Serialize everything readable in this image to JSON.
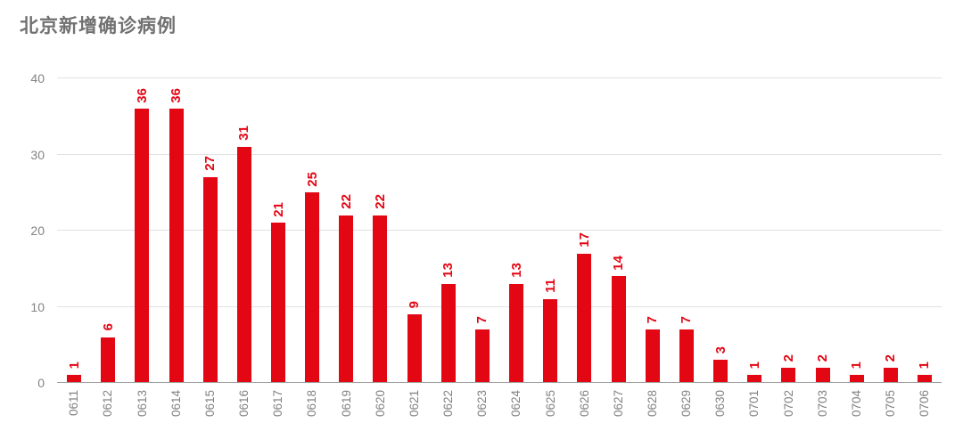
{
  "title": "北京新增确诊病例",
  "colors": {
    "bar": "#e30613",
    "value_label": "#e30613",
    "title": "#717171",
    "axis_label": "#828282",
    "gridline": "#e2e2e2",
    "baseline": "#9b9b9b",
    "background": "#ffffff"
  },
  "chart_data": {
    "type": "bar",
    "title": "北京新增确诊病例",
    "categories": [
      "0611",
      "0612",
      "0613",
      "0614",
      "0615",
      "0616",
      "0617",
      "0618",
      "0619",
      "0620",
      "0621",
      "0622",
      "0623",
      "0624",
      "0625",
      "0626",
      "0627",
      "0628",
      "0629",
      "0630",
      "0701",
      "0702",
      "0703",
      "0704",
      "0705",
      "0706"
    ],
    "values": [
      1,
      6,
      36,
      36,
      27,
      31,
      21,
      25,
      22,
      22,
      9,
      13,
      7,
      13,
      11,
      17,
      14,
      7,
      7,
      3,
      1,
      2,
      2,
      1,
      2,
      1
    ],
    "xlabel": "",
    "ylabel": "",
    "ylim": [
      0,
      40
    ],
    "yticks": [
      0,
      10,
      20,
      30,
      40
    ],
    "grid": true,
    "legend": false,
    "value_labels": "rotated-90-above-bars",
    "tick_labels": "rotated-90-below-axis"
  }
}
